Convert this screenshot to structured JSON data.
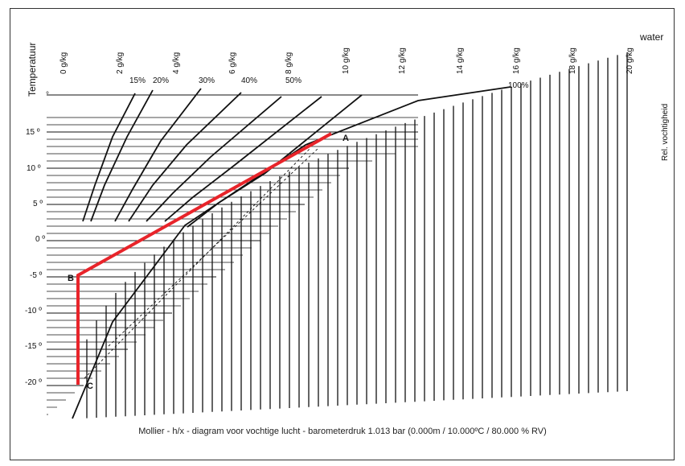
{
  "labels": {
    "y_axis": "Temperatuur",
    "water": "water",
    "rh_axis": "Rel. vochtigheid",
    "caption": "Mollier - h/x - diagram voor vochtige lucht - barometerdruk 1.013 bar (0.000m / 10.000ºC / 80.000 % RV)"
  },
  "moisture_labels": [
    "0 g/kg",
    "2 g/kg",
    "4 g/kg",
    "6 g/kg",
    "8 g/kg",
    "10 g/kg",
    "12 g/kg",
    "14 g/kg",
    "16 g/kg",
    "18 g/kg",
    "20 g/kg"
  ],
  "temperature_labels": [
    "°",
    "15 º",
    "10 º",
    "5 º",
    "0 º",
    "-5 º",
    "-10 º",
    "-15 º",
    "-20 º"
  ],
  "rh_labels": [
    "15%",
    "20%",
    "30%",
    "40%",
    "50%",
    "100%"
  ],
  "points": [
    "A",
    "B",
    "C"
  ],
  "colors": {
    "process_line": "#e8242a",
    "ink": "#111111"
  }
}
